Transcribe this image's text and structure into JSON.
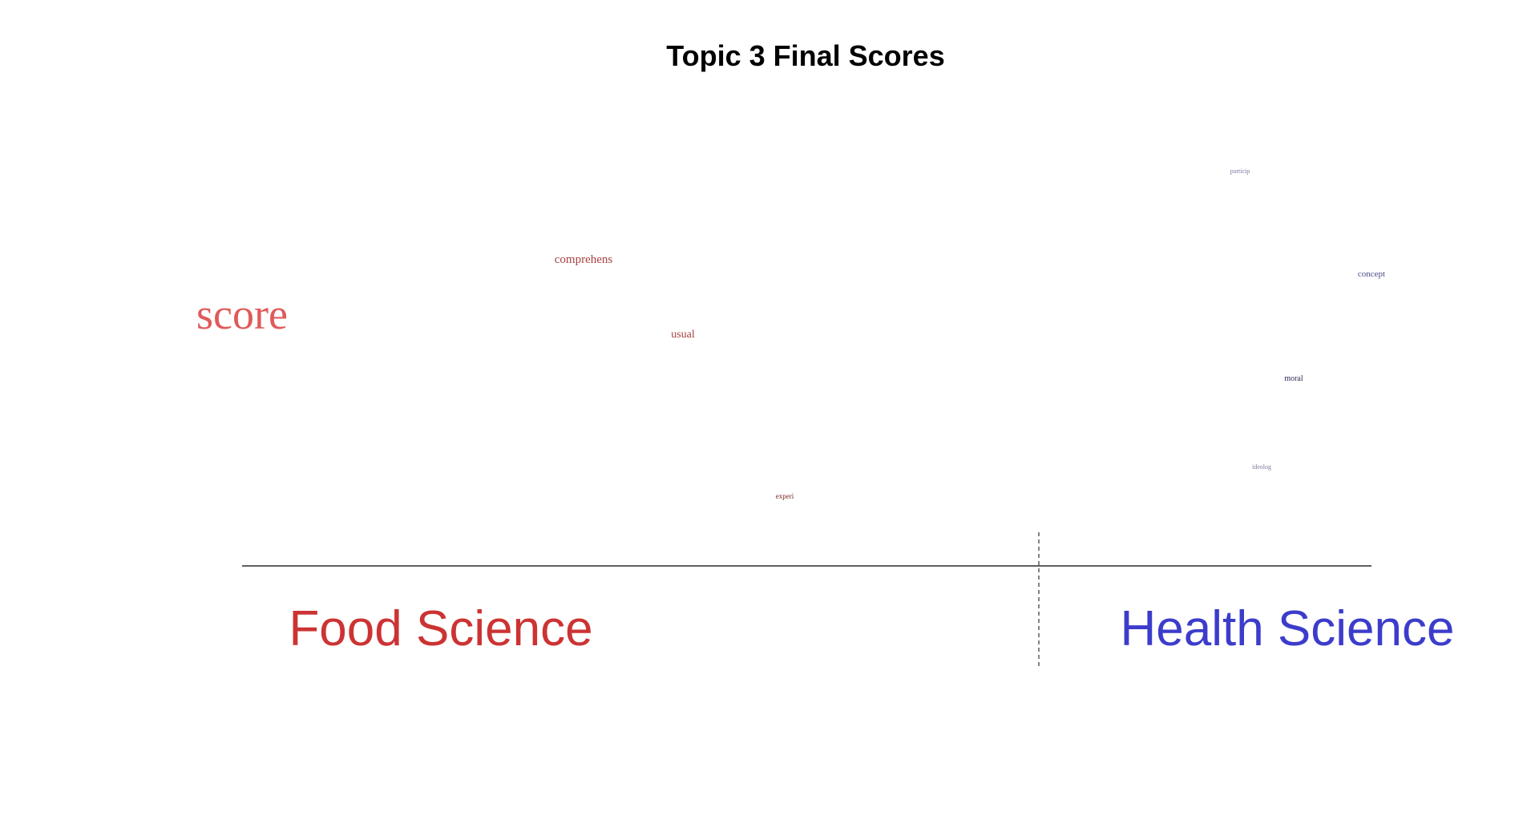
{
  "chart_data": {
    "type": "scatter",
    "title": "Topic 3 Final Scores",
    "xlabel": "",
    "ylabel": "",
    "grid": false,
    "groups": [
      {
        "label": "Food Science",
        "color": "#cc3333"
      },
      {
        "label": "Health Science",
        "color": "#3c3ccc"
      }
    ],
    "colors": {
      "food_strong": "#e05a5a",
      "food": "#a84040",
      "food_dark": "#7a2a2a",
      "neutral": "#888888",
      "health_light": "#7a7aa0",
      "health": "#4a4a8a",
      "health_dark": "#2a2a55"
    },
    "words": [
      {
        "text": "score",
        "size": 54,
        "color_key": "food_strong"
      },
      {
        "text": "comprehens",
        "size": 15,
        "color_key": "food"
      },
      {
        "text": "usual",
        "size": 14,
        "color_key": "food"
      },
      {
        "text": "experi",
        "size": 9,
        "color_key": "food_dark"
      },
      {
        "text": "particip",
        "size": 8,
        "color_key": "health_light"
      },
      {
        "text": "concept",
        "size": 11,
        "color_key": "health"
      },
      {
        "text": "moral",
        "size": 10,
        "color_key": "health_dark"
      },
      {
        "text": "ideolog",
        "size": 8,
        "color_key": "health_light"
      }
    ]
  }
}
